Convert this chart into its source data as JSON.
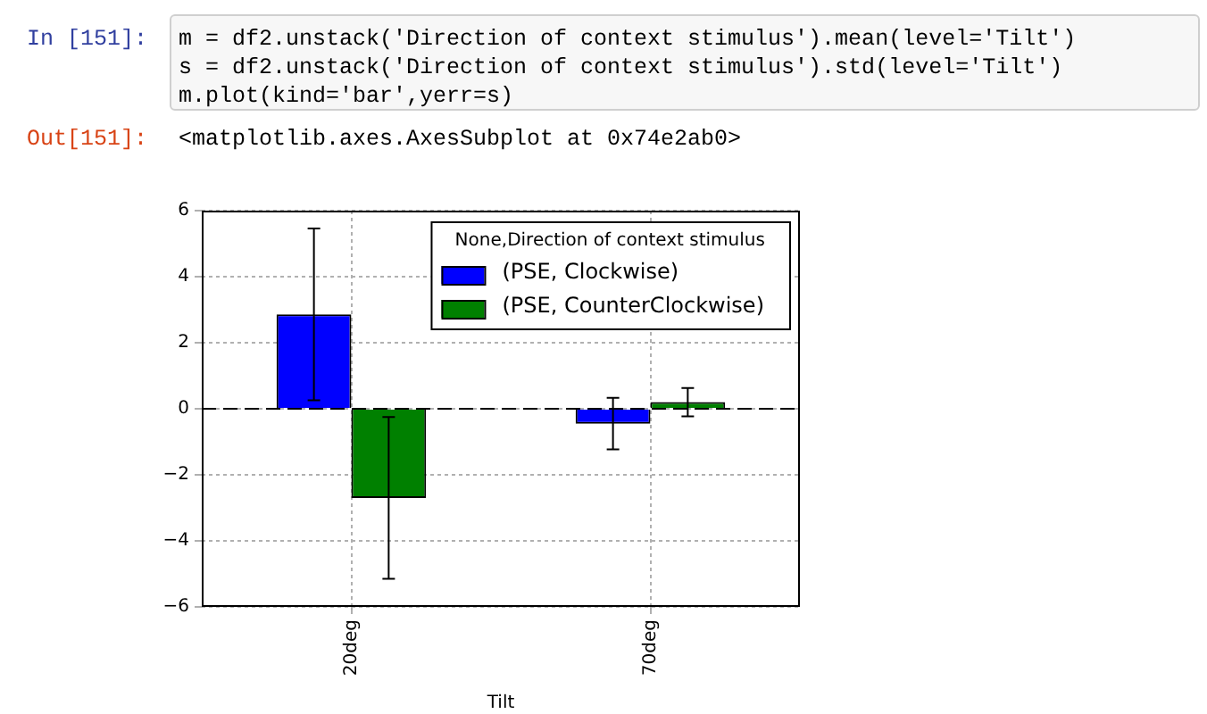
{
  "chart_data": {
    "type": "bar",
    "categories": [
      "20deg",
      "70deg"
    ],
    "xlabel": "Tilt",
    "legend_title": "None,Direction of context stimulus",
    "legend": "top right",
    "grid": true,
    "series": [
      {
        "name": "(PSE, Clockwise)",
        "color": "#0000ff",
        "values": [
          2.86,
          -0.45
        ],
        "errors": [
          2.6,
          0.78
        ]
      },
      {
        "name": "(PSE, CounterClockwise)",
        "color": "#008000",
        "values": [
          -2.7,
          0.2
        ],
        "errors": [
          2.45,
          0.43
        ]
      }
    ],
    "ylim": [
      -6,
      6
    ],
    "yticks": [
      -6,
      -4,
      -2,
      0,
      2,
      4,
      6
    ],
    "ref_lines": [
      {
        "axis": "y",
        "value": 0,
        "color": "#000000",
        "line_style": "dashed"
      }
    ],
    "annotations": [
      "In [151]:",
      "m = df2.unstack('Direction of context stimulus').mean(level='Tilt')",
      "s = df2.unstack('Direction of context stimulus').std(level='Tilt')",
      "m.plot(kind='bar',yerr=s)",
      "Out[151]:",
      "<matplotlib.axes.AxesSubplot at 0x74e2ab0>"
    ]
  }
}
